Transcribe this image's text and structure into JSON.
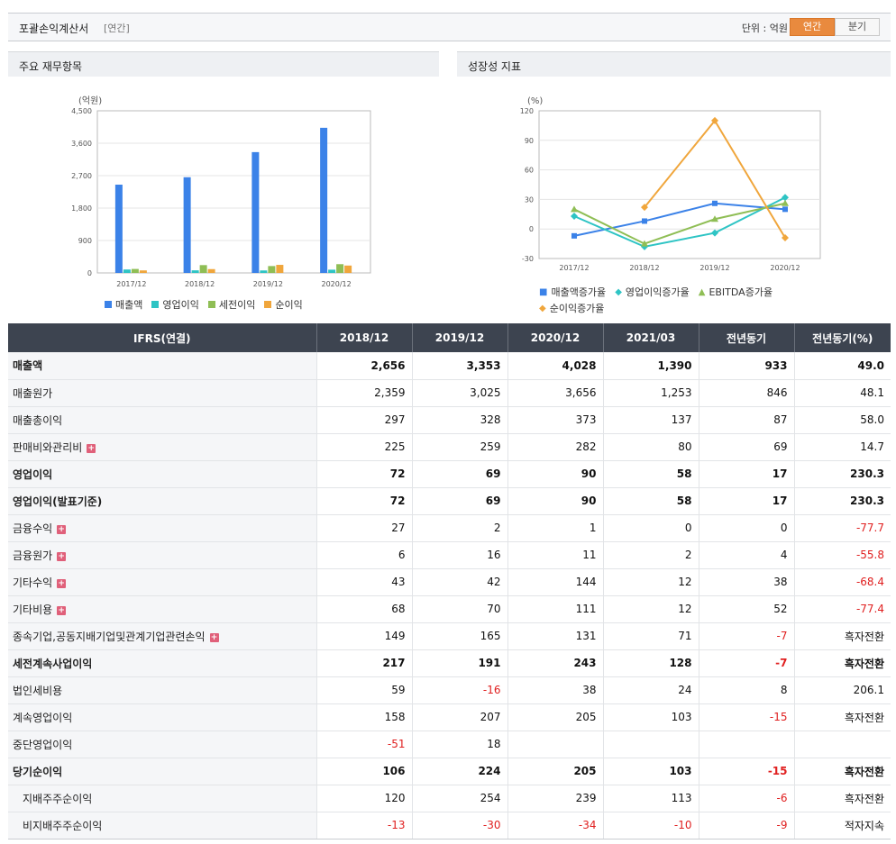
{
  "header": {
    "title": "포괄손익계산서",
    "period_type": "[연간]",
    "unit_label": "단위 : 억원",
    "toggle_annual": "연간",
    "toggle_quarter": "분기"
  },
  "left_panel": {
    "title": "주요 재무항목"
  },
  "right_panel": {
    "title": "성장성 지표"
  },
  "colors": {
    "sales": "#3b82e8",
    "op_income": "#2ec4c4",
    "pretax": "#8fbe55",
    "net": "#f0a63c",
    "header_bg": "#3d4450",
    "negative": "#e02020",
    "toggle_active": "#e98a3e"
  },
  "chart_data": [
    {
      "type": "bar",
      "unit": "(억원)",
      "categories": [
        "2017/12",
        "2018/12",
        "2019/12",
        "2020/12"
      ],
      "ylim": [
        0,
        4500
      ],
      "yticks": [
        "0",
        "900",
        "1,800",
        "2,700",
        "3,600",
        "4,500"
      ],
      "ytick_values": [
        0,
        900,
        1800,
        2700,
        3600,
        4500
      ],
      "series": [
        {
          "name": "매출액",
          "values": [
            2450,
            2656,
            3353,
            4028
          ]
        },
        {
          "name": "영업이익",
          "values": [
            95,
            72,
            69,
            90
          ]
        },
        {
          "name": "세전이익",
          "values": [
            110,
            217,
            191,
            243
          ]
        },
        {
          "name": "순이익",
          "values": [
            70,
            106,
            224,
            205
          ]
        }
      ]
    },
    {
      "type": "line",
      "unit": "(%)",
      "categories": [
        "2017/12",
        "2018/12",
        "2019/12",
        "2020/12"
      ],
      "ylim": [
        -30,
        120
      ],
      "yticks": [
        "-30",
        "0",
        "30",
        "60",
        "90",
        "120"
      ],
      "ytick_values": [
        -30,
        0,
        30,
        60,
        90,
        120
      ],
      "series": [
        {
          "name": "매출액증가율",
          "values": [
            -7,
            8,
            26,
            20
          ]
        },
        {
          "name": "영업이익증가율",
          "values": [
            13,
            -18,
            -4,
            32
          ]
        },
        {
          "name": "EBITDA증가율",
          "values": [
            20,
            -15,
            10,
            26
          ]
        },
        {
          "name": "순이익증가율",
          "values": [
            null,
            22,
            110,
            -9
          ]
        }
      ]
    }
  ],
  "table": {
    "columns": [
      "IFRS(연결)",
      "2018/12",
      "2019/12",
      "2020/12",
      "2021/03",
      "전년동기",
      "전년동기(%)"
    ],
    "rows": [
      {
        "label": "매출액",
        "bold": true,
        "plus": false,
        "indent": false,
        "cells": [
          "2,656",
          "3,353",
          "4,028",
          "1,390",
          "933",
          "49.0"
        ]
      },
      {
        "label": "매출원가",
        "bold": false,
        "plus": false,
        "indent": false,
        "cells": [
          "2,359",
          "3,025",
          "3,656",
          "1,253",
          "846",
          "48.1"
        ]
      },
      {
        "label": "매출총이익",
        "bold": false,
        "plus": false,
        "indent": false,
        "cells": [
          "297",
          "328",
          "373",
          "137",
          "87",
          "58.0"
        ]
      },
      {
        "label": "판매비와관리비",
        "bold": false,
        "plus": true,
        "indent": false,
        "cells": [
          "225",
          "259",
          "282",
          "80",
          "69",
          "14.7"
        ]
      },
      {
        "label": "영업이익",
        "bold": true,
        "plus": false,
        "indent": false,
        "cells": [
          "72",
          "69",
          "90",
          "58",
          "17",
          "230.3"
        ]
      },
      {
        "label": "영업이익(발표기준)",
        "bold": true,
        "plus": false,
        "indent": false,
        "cells": [
          "72",
          "69",
          "90",
          "58",
          "17",
          "230.3"
        ]
      },
      {
        "label": "금융수익",
        "bold": false,
        "plus": true,
        "indent": false,
        "cells": [
          "27",
          "2",
          "1",
          "0",
          "0",
          "-77.7"
        ]
      },
      {
        "label": "금융원가",
        "bold": false,
        "plus": true,
        "indent": false,
        "cells": [
          "6",
          "16",
          "11",
          "2",
          "4",
          "-55.8"
        ]
      },
      {
        "label": "기타수익",
        "bold": false,
        "plus": true,
        "indent": false,
        "cells": [
          "43",
          "42",
          "144",
          "12",
          "38",
          "-68.4"
        ]
      },
      {
        "label": "기타비용",
        "bold": false,
        "plus": true,
        "indent": false,
        "cells": [
          "68",
          "70",
          "111",
          "12",
          "52",
          "-77.4"
        ]
      },
      {
        "label": "종속기업,공동지배기업및관계기업관련손익",
        "bold": false,
        "plus": true,
        "indent": false,
        "cells": [
          "149",
          "165",
          "131",
          "71",
          "-7",
          "흑자전환"
        ]
      },
      {
        "label": "세전계속사업이익",
        "bold": true,
        "plus": false,
        "indent": false,
        "cells": [
          "217",
          "191",
          "243",
          "128",
          "-7",
          "흑자전환"
        ]
      },
      {
        "label": "법인세비용",
        "bold": false,
        "plus": false,
        "indent": false,
        "cells": [
          "59",
          "-16",
          "38",
          "24",
          "8",
          "206.1"
        ]
      },
      {
        "label": "계속영업이익",
        "bold": false,
        "plus": false,
        "indent": false,
        "cells": [
          "158",
          "207",
          "205",
          "103",
          "-15",
          "흑자전환"
        ]
      },
      {
        "label": "중단영업이익",
        "bold": false,
        "plus": false,
        "indent": false,
        "cells": [
          "-51",
          "18",
          "",
          "",
          "",
          ""
        ]
      },
      {
        "label": "당기순이익",
        "bold": true,
        "plus": false,
        "indent": false,
        "cells": [
          "106",
          "224",
          "205",
          "103",
          "-15",
          "흑자전환"
        ]
      },
      {
        "label": "지배주주순이익",
        "bold": false,
        "plus": false,
        "indent": true,
        "cells": [
          "120",
          "254",
          "239",
          "113",
          "-6",
          "흑자전환"
        ]
      },
      {
        "label": "비지배주주순이익",
        "bold": false,
        "plus": false,
        "indent": true,
        "cells": [
          "-13",
          "-30",
          "-34",
          "-10",
          "-9",
          "적자지속"
        ]
      }
    ]
  }
}
